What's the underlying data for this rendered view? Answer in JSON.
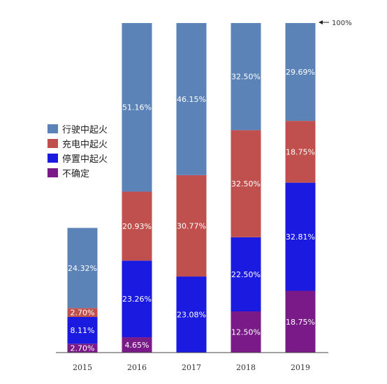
{
  "chart_data": {
    "type": "bar",
    "stacked": true,
    "categories": [
      "2015",
      "2016",
      "2017",
      "2018",
      "2019"
    ],
    "series": [
      {
        "name": "不确定",
        "color": "#7a1a88",
        "values": [
          2.7,
          4.65,
          null,
          12.5,
          18.75
        ],
        "labels": [
          "2.70%",
          "4.65%",
          "",
          "12.50%",
          "18.75%"
        ]
      },
      {
        "name": "停置中起火",
        "color": "#1a1ae0",
        "values": [
          8.11,
          23.26,
          23.08,
          22.5,
          32.81
        ],
        "labels": [
          "8.11%",
          "23.26%",
          "23.08%",
          "22.50%",
          "32.81%"
        ]
      },
      {
        "name": "充电中起火",
        "color": "#c0504d",
        "values": [
          2.7,
          20.93,
          30.77,
          32.5,
          18.75
        ],
        "labels": [
          "2.70%",
          "20.93%",
          "30.77%",
          "32.50%",
          "18.75%"
        ]
      },
      {
        "name": "行驶中起火",
        "color": "#5b83b8",
        "values": [
          24.32,
          51.16,
          46.15,
          32.5,
          29.69
        ],
        "labels": [
          "24.32%",
          "51.16%",
          "46.15%",
          "32.50%",
          "29.69%"
        ]
      }
    ],
    "legend_order": [
      3,
      2,
      1,
      0
    ],
    "legend_position": "left",
    "ylim": [
      0,
      100
    ],
    "reference_line_label": "100%",
    "grid": false
  }
}
